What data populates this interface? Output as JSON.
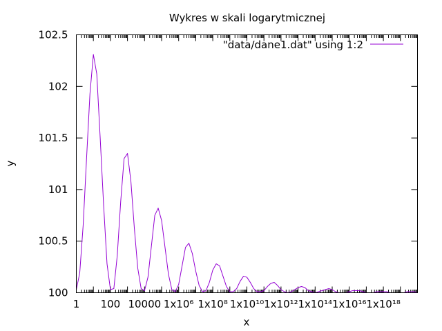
{
  "chart_data": {
    "type": "line",
    "title": "Wykres w skali logarytmicznej",
    "xlabel": "x",
    "ylabel": "y",
    "x_scale": "log",
    "xlim": [
      1,
      1e+20
    ],
    "ylim": [
      100,
      102.5
    ],
    "grid": false,
    "legend_position": "top-right",
    "x_tick_labels": [
      "1",
      "100",
      "10000",
      "1x10⁶",
      "1x10⁸",
      "1x10¹⁰",
      "1x10¹²",
      "1x10¹⁴",
      "1x10¹⁶",
      "1x10¹⁸"
    ],
    "y_tick_labels": [
      "100",
      "100.5",
      "101",
      "101.5",
      "102",
      "102.5"
    ],
    "series": [
      {
        "name": "\"data/dane1.dat\" using 1:2",
        "color": "#9400d3",
        "x_log10": [
          0.0,
          0.2,
          0.4,
          0.6,
          0.8,
          1.0,
          1.2,
          1.4,
          1.6,
          1.8,
          2.0,
          2.2,
          2.4,
          2.6,
          2.8,
          3.0,
          3.2,
          3.4,
          3.6,
          3.8,
          4.0,
          4.2,
          4.4,
          4.6,
          4.8,
          5.0,
          5.2,
          5.4,
          5.6,
          5.8,
          6.0,
          6.2,
          6.4,
          6.6,
          6.8,
          7.0,
          7.2,
          7.4,
          7.6,
          7.8,
          8.0,
          8.2,
          8.4,
          8.6,
          8.8,
          9.0,
          9.2,
          9.4,
          9.6,
          9.8,
          10.0,
          10.2,
          10.4,
          10.6,
          10.8,
          11.0,
          11.2,
          11.4,
          11.6,
          11.8,
          12.0,
          12.2,
          12.4,
          12.6,
          12.8,
          13.0,
          13.2,
          13.4,
          13.6,
          13.8,
          14.0,
          14.2,
          14.4,
          14.6,
          14.8,
          15.0,
          15.2,
          15.4,
          15.6,
          15.8,
          16.0,
          16.2,
          16.4,
          16.6,
          16.8,
          17.0,
          17.2,
          17.4,
          17.6,
          17.8,
          18.0,
          18.2,
          18.4,
          18.6,
          18.8,
          19.0,
          19.2,
          19.4,
          19.6,
          19.8,
          20.0
        ],
        "y": [
          100.03,
          100.19,
          100.65,
          101.3,
          101.93,
          102.31,
          102.12,
          101.5,
          100.85,
          100.28,
          100.03,
          100.04,
          100.36,
          100.88,
          101.3,
          101.35,
          101.08,
          100.63,
          100.24,
          100.04,
          100.02,
          100.15,
          100.45,
          100.75,
          100.82,
          100.7,
          100.44,
          100.18,
          100.03,
          100.01,
          100.08,
          100.26,
          100.44,
          100.48,
          100.38,
          100.21,
          100.07,
          100.01,
          100.02,
          100.1,
          100.22,
          100.28,
          100.26,
          100.16,
          100.06,
          100.01,
          100.01,
          100.04,
          100.11,
          100.16,
          100.15,
          100.1,
          100.04,
          100.01,
          100.01,
          100.02,
          100.06,
          100.09,
          100.1,
          100.07,
          100.03,
          100.01,
          100.0,
          100.01,
          100.03,
          100.05,
          100.06,
          100.05,
          100.02,
          100.01,
          100.0,
          100.01,
          100.02,
          100.03,
          100.04,
          100.03,
          100.01,
          100.0,
          100.0,
          100.0,
          100.01,
          100.02,
          100.02,
          100.02,
          100.01,
          100.0,
          100.0,
          100.0,
          100.01,
          100.01,
          100.01,
          100.01,
          100.0,
          100.0,
          100.0,
          100.0,
          100.0,
          100.01,
          100.01,
          100.01,
          100.0
        ]
      }
    ]
  }
}
